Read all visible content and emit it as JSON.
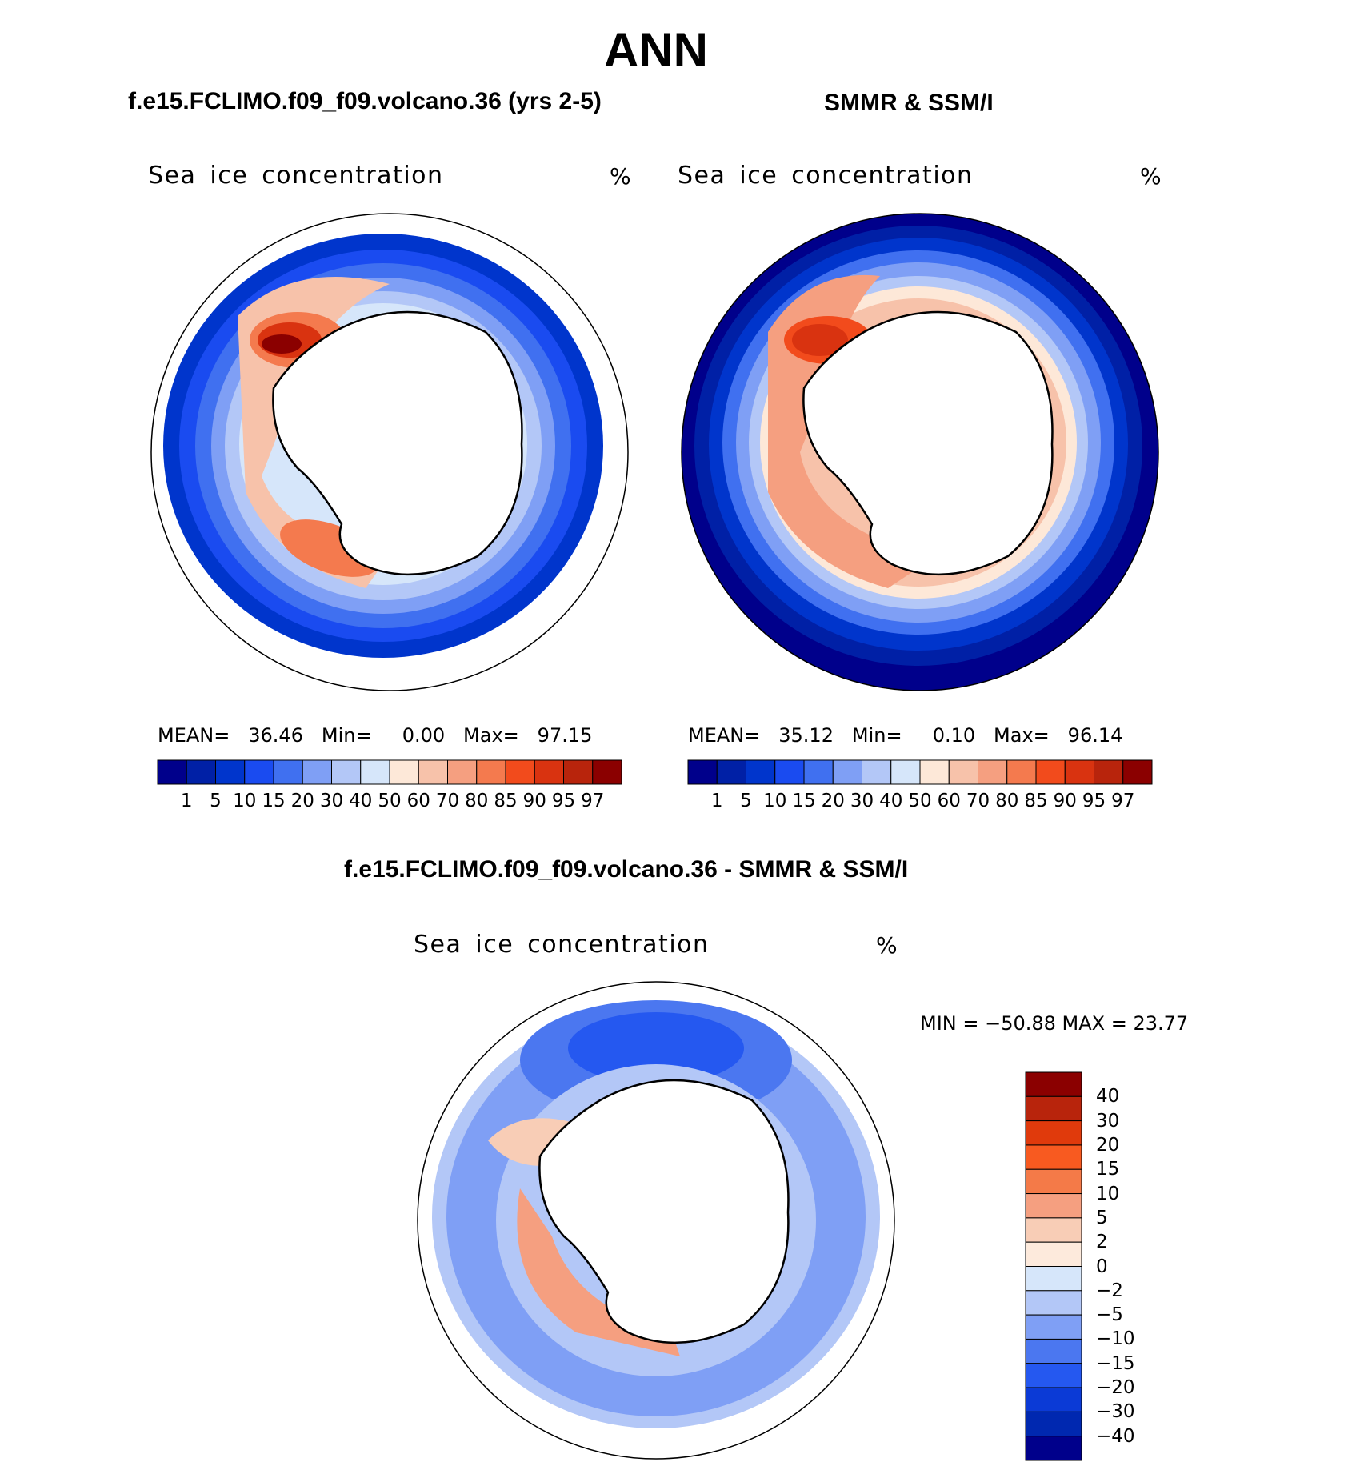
{
  "title": "ANN",
  "panels": [
    {
      "title": "f.e15.FCLIMO.f09_f09.volcano.36 (yrs 2-5)",
      "variable": "Sea ice concentration",
      "units": "%",
      "stats": {
        "mean_label": "MEAN=",
        "mean": "36.46",
        "min_label": "Min=",
        "min": "0.00",
        "max_label": "Max=",
        "max": "97.15"
      }
    },
    {
      "title": "SMMR & SSM/I",
      "variable": "Sea ice concentration",
      "units": "%",
      "stats": {
        "mean_label": "MEAN=",
        "mean": "35.12",
        "min_label": "Min=",
        "min": "0.10",
        "max_label": "Max=",
        "max": "96.14"
      }
    },
    {
      "title": "f.e15.FCLIMO.f09_f09.volcano.36 - SMMR & SSM/I",
      "variable": "Sea ice concentration",
      "units": "%",
      "stats_text": "MIN = −50.88 MAX =   23.77"
    }
  ],
  "colorbar": {
    "levels": [
      "1",
      "5",
      "10",
      "15",
      "20",
      "30",
      "40",
      "50",
      "60",
      "70",
      "80",
      "85",
      "90",
      "95",
      "97"
    ],
    "colors": [
      "#00008b",
      "#0020a6",
      "#0035cc",
      "#1a4bf0",
      "#4070f0",
      "#7f9ff5",
      "#b3c7f7",
      "#d6e6fa",
      "#fde8d8",
      "#f7c2aa",
      "#f59f80",
      "#f47a4e",
      "#f24b1c",
      "#d93310",
      "#b8240c",
      "#8b0000"
    ]
  },
  "diff_colorbar": {
    "levels": [
      "40",
      "30",
      "20",
      "15",
      "10",
      "5",
      "2",
      "0",
      "−2",
      "−5",
      "−10",
      "−15",
      "−20",
      "−30",
      "−40"
    ],
    "colors": [
      "#8b0000",
      "#b8240c",
      "#e03a0c",
      "#f85a20",
      "#f47a48",
      "#f59f80",
      "#f8cdb6",
      "#fdeadc",
      "#d6e6fa",
      "#b3c7f7",
      "#7f9ff5",
      "#4b77f0",
      "#2558f0",
      "#0b3ad6",
      "#0028b0",
      "#00008b"
    ]
  },
  "legend": {
    "type": "discrete colorbar",
    "placement": "below maps / right of difference map"
  }
}
